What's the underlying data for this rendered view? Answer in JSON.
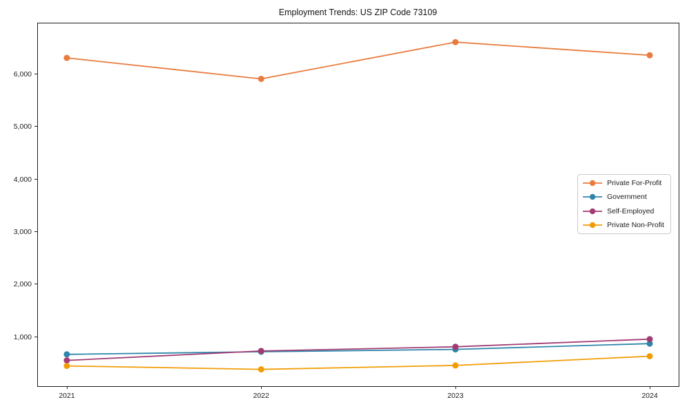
{
  "chart_data": {
    "type": "line",
    "title": "Employment Trends: US ZIP Code 73109",
    "x": [
      "2021",
      "2022",
      "2023",
      "2024"
    ],
    "series": [
      {
        "name": "Private For-Profit",
        "color": "#E87C3F",
        "values": [
          6300,
          5900,
          6600,
          6350
        ]
      },
      {
        "name": "Government",
        "color": "#2E86AB",
        "values": [
          655,
          705,
          750,
          860
        ]
      },
      {
        "name": "Self-Employed",
        "color": "#A23B72",
        "values": [
          540,
          720,
          800,
          945
        ]
      },
      {
        "name": "Private Non-Profit",
        "color": "#F29C05",
        "values": [
          435,
          370,
          445,
          620
        ]
      }
    ],
    "ylim": [
      50,
      6970
    ],
    "yticks": [
      1000,
      2000,
      3000,
      4000,
      5000,
      6000
    ],
    "ytick_labels": [
      "1,000",
      "2,000",
      "3,000",
      "4,000",
      "5,000",
      "6,000"
    ],
    "xlabel": "",
    "ylabel": "",
    "grid": false,
    "legend_position": "center-right",
    "marker": "circle",
    "axis_color": "#1a1a1a",
    "tick_label_color": "#1a1a1a"
  }
}
